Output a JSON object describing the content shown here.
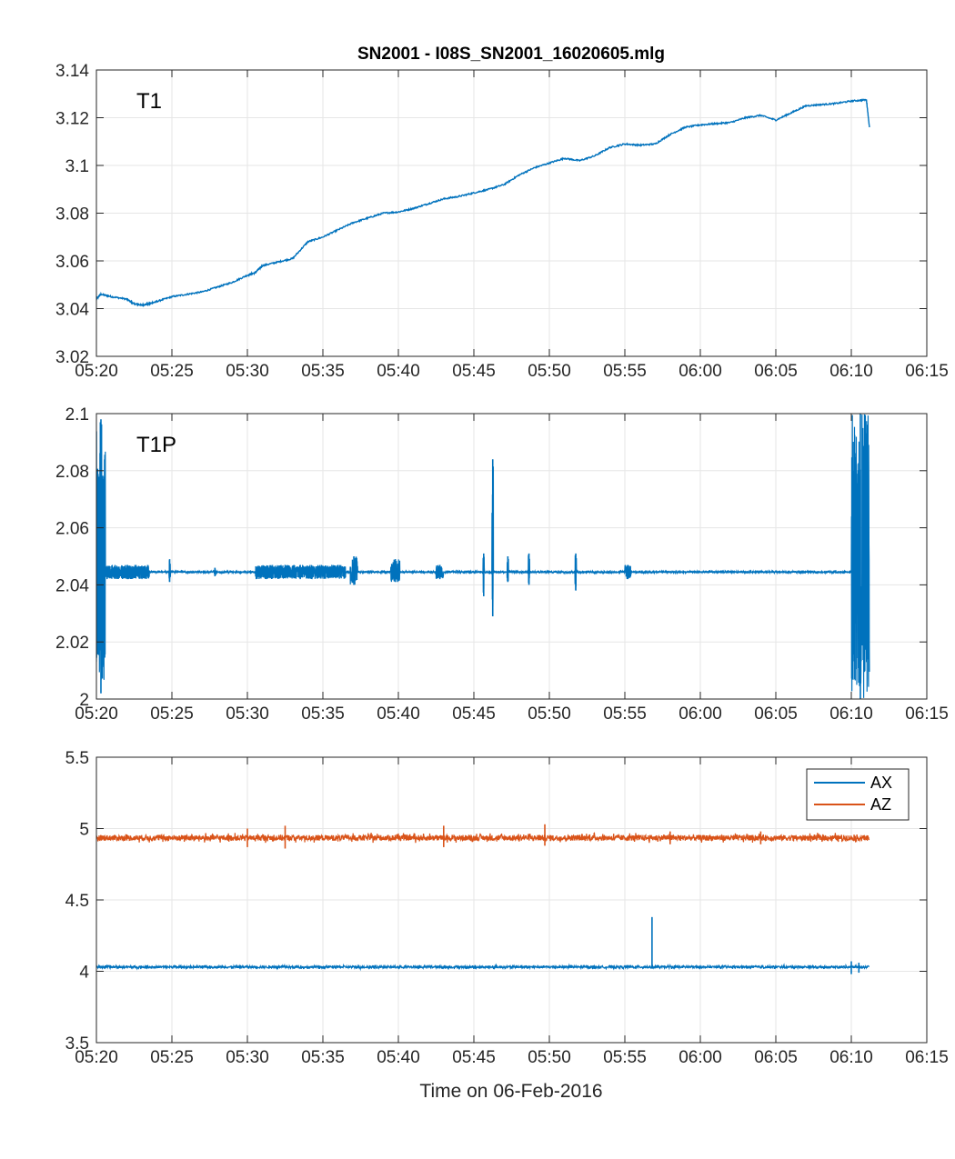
{
  "title": "SN2001 - I08S_SN2001_16020605.mlg",
  "xlabel": "Time on 06-Feb-2016",
  "colors": {
    "blue": "#0072BD",
    "orange": "#D95319",
    "grid": "#e6e6e6",
    "axis": "#262626"
  },
  "chart_data": [
    {
      "type": "line",
      "panel_label": "T1",
      "x_ticks": [
        "05:20",
        "05:25",
        "05:30",
        "05:35",
        "05:40",
        "05:45",
        "05:50",
        "05:55",
        "06:00",
        "06:05",
        "06:10",
        "06:15"
      ],
      "x_range_minutes": [
        0,
        55
      ],
      "ylim": [
        3.02,
        3.14
      ],
      "y_ticks": [
        "3.02",
        "3.04",
        "3.06",
        "3.08",
        "3.1",
        "3.12",
        "3.14"
      ],
      "grid": true,
      "series": [
        {
          "color": "#0072BD",
          "x": [
            0,
            0.3,
            1,
            2,
            2.5,
            3,
            3.5,
            4,
            5,
            6,
            7,
            8,
            9,
            10,
            10.5,
            11,
            12,
            13,
            14,
            15,
            16,
            17,
            18,
            19,
            20,
            21,
            22,
            23,
            24,
            25,
            26,
            27,
            28,
            29,
            30,
            31,
            32,
            33,
            34,
            35,
            36,
            37,
            38,
            39,
            40,
            41,
            42,
            43,
            44,
            45,
            46,
            47,
            48,
            49,
            50,
            51,
            51.2
          ],
          "y": [
            3.044,
            3.046,
            3.045,
            3.044,
            3.042,
            3.0415,
            3.042,
            3.043,
            3.045,
            3.046,
            3.047,
            3.049,
            3.051,
            3.054,
            3.055,
            3.058,
            3.0595,
            3.061,
            3.068,
            3.07,
            3.073,
            3.076,
            3.078,
            3.08,
            3.0805,
            3.082,
            3.084,
            3.086,
            3.087,
            3.0885,
            3.09,
            3.092,
            3.096,
            3.099,
            3.101,
            3.103,
            3.102,
            3.104,
            3.1075,
            3.109,
            3.1085,
            3.109,
            3.113,
            3.116,
            3.117,
            3.1175,
            3.118,
            3.12,
            3.121,
            3.119,
            3.122,
            3.125,
            3.1255,
            3.126,
            3.127,
            3.1275,
            3.116
          ]
        }
      ]
    },
    {
      "type": "line",
      "panel_label": "T1P",
      "x_ticks": [
        "05:20",
        "05:25",
        "05:30",
        "05:35",
        "05:40",
        "05:45",
        "05:50",
        "05:55",
        "06:00",
        "06:05",
        "06:10",
        "06:15"
      ],
      "x_range_minutes": [
        0,
        55
      ],
      "ylim": [
        2.0,
        2.1
      ],
      "y_ticks": [
        "2",
        "2.02",
        "2.04",
        "2.06",
        "2.08",
        "2.1"
      ],
      "grid": true,
      "series": [
        {
          "color": "#0072BD",
          "baseline": 2.0445,
          "bursts": [
            {
              "start": 0.0,
              "end": 0.6,
              "min": 2.002,
              "max": 2.098
            },
            {
              "start": 0.6,
              "end": 3.5,
              "min": 2.042,
              "max": 2.047
            },
            {
              "start": 4.8,
              "end": 4.9,
              "min": 2.041,
              "max": 2.049
            },
            {
              "start": 7.8,
              "end": 7.9,
              "min": 2.043,
              "max": 2.046
            },
            {
              "start": 10.5,
              "end": 16.5,
              "min": 2.042,
              "max": 2.047
            },
            {
              "start": 16.8,
              "end": 17.3,
              "min": 2.04,
              "max": 2.05
            },
            {
              "start": 19.5,
              "end": 20.1,
              "min": 2.041,
              "max": 2.049
            },
            {
              "start": 22.5,
              "end": 23.0,
              "min": 2.042,
              "max": 2.047
            },
            {
              "start": 25.6,
              "end": 25.7,
              "min": 2.036,
              "max": 2.051
            },
            {
              "start": 26.2,
              "end": 26.3,
              "min": 2.029,
              "max": 2.084
            },
            {
              "start": 27.2,
              "end": 27.3,
              "min": 2.041,
              "max": 2.05
            },
            {
              "start": 28.6,
              "end": 28.7,
              "min": 2.04,
              "max": 2.051
            },
            {
              "start": 31.7,
              "end": 31.8,
              "min": 2.038,
              "max": 2.051
            },
            {
              "start": 35.0,
              "end": 35.4,
              "min": 2.042,
              "max": 2.047
            },
            {
              "start": 50.0,
              "end": 51.2,
              "min": 2.0,
              "max": 2.1
            }
          ]
        }
      ]
    },
    {
      "type": "line",
      "x_ticks": [
        "05:20",
        "05:25",
        "05:30",
        "05:35",
        "05:40",
        "05:45",
        "05:50",
        "05:55",
        "06:00",
        "06:05",
        "06:10",
        "06:15"
      ],
      "x_range_minutes": [
        0,
        55
      ],
      "ylim": [
        3.5,
        5.5
      ],
      "y_ticks": [
        "3.5",
        "4",
        "4.5",
        "5",
        "5.5"
      ],
      "grid": true,
      "legend_placement": "top-right",
      "series": [
        {
          "name": "AX",
          "color": "#0072BD",
          "baseline": 4.03,
          "x_end": 51.2,
          "noise": 0.008,
          "spikes": [
            {
              "at": 36.8,
              "min": 4.03,
              "max": 4.38
            },
            {
              "at": 50.0,
              "min": 3.98,
              "max": 4.07
            },
            {
              "at": 50.5,
              "min": 3.99,
              "max": 4.06
            }
          ]
        },
        {
          "name": "AZ",
          "color": "#D95319",
          "baseline": 4.935,
          "x_end": 51.2,
          "noise": 0.02,
          "spikes": [
            {
              "at": 10.0,
              "min": 4.87,
              "max": 5.0
            },
            {
              "at": 12.5,
              "min": 4.86,
              "max": 5.02
            },
            {
              "at": 23.0,
              "min": 4.87,
              "max": 5.02
            },
            {
              "at": 29.7,
              "min": 4.88,
              "max": 5.03
            },
            {
              "at": 38.0,
              "min": 4.89,
              "max": 4.98
            },
            {
              "at": 44.0,
              "min": 4.89,
              "max": 4.98
            }
          ]
        }
      ]
    }
  ]
}
